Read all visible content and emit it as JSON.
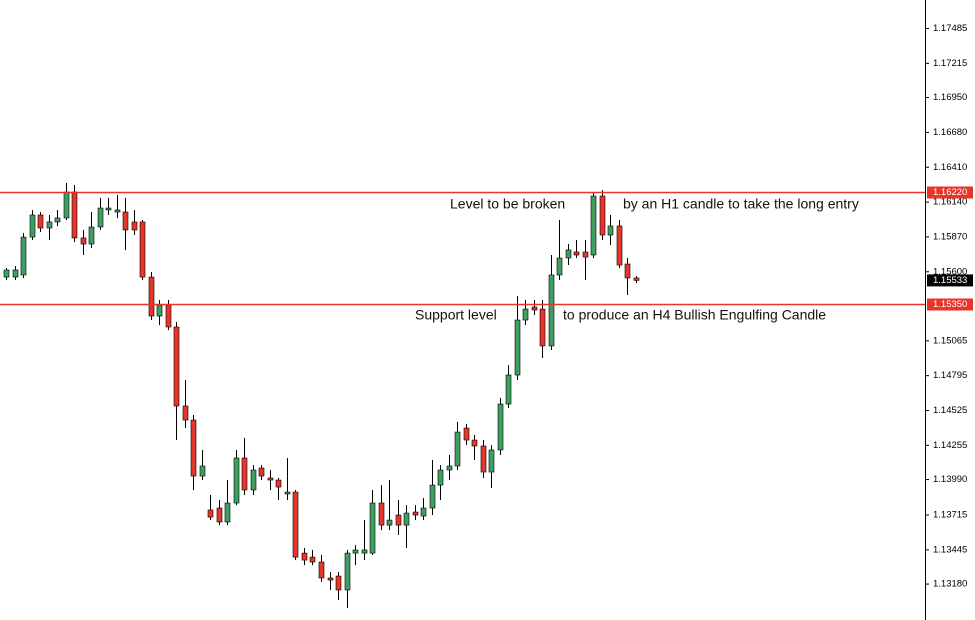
{
  "chart_data": {
    "type": "candlestick",
    "ylim": [
      1.12917,
      1.17706
    ],
    "yticks": [
      {
        "value": 1.17485,
        "label": "1.17485"
      },
      {
        "value": 1.17215,
        "label": "1.17215"
      },
      {
        "value": 1.1695,
        "label": "1.16950"
      },
      {
        "value": 1.1668,
        "label": "1.16680"
      },
      {
        "value": 1.1641,
        "label": "1.16410"
      },
      {
        "value": 1.1614,
        "label": "1.16140"
      },
      {
        "value": 1.1587,
        "label": "1.15870"
      },
      {
        "value": 1.156,
        "label": "1.15600"
      },
      {
        "value": 1.15065,
        "label": "1.15065"
      },
      {
        "value": 1.14795,
        "label": "1.14795"
      },
      {
        "value": 1.14525,
        "label": "1.14525"
      },
      {
        "value": 1.14255,
        "label": "1.14255"
      },
      {
        "value": 1.1399,
        "label": "1.13990"
      },
      {
        "value": 1.13715,
        "label": "1.13715"
      },
      {
        "value": 1.13445,
        "label": "1.13445"
      },
      {
        "value": 1.1318,
        "label": "1.13180"
      }
    ],
    "up_color": "#3f9f62",
    "down_color": "#e8352b",
    "wick_color": "#000000",
    "open": [
      1.15559,
      1.15559,
      1.15575,
      1.15869,
      1.1604,
      1.15939,
      1.15986,
      1.16017,
      1.16218,
      1.15862,
      1.15815,
      1.15947,
      1.16079,
      1.16063,
      1.16063,
      1.15986,
      1.15986,
      1.15559,
      1.15257,
      1.15342,
      1.15172,
      1.1456,
      1.14451,
      1.14017,
      1.13754,
      1.13769,
      1.13661,
      1.13808,
      1.14157,
      1.13909,
      1.14079,
      1.14002,
      1.13986,
      1.13878,
      1.13893,
      1.1342,
      1.13389,
      1.13351,
      1.13227,
      1.13242,
      1.13134,
      1.1342,
      1.1342,
      1.1342,
      1.13808,
      1.13637,
      1.13715,
      1.13637,
      1.13738,
      1.13707,
      1.13769,
      1.13947,
      1.14064,
      1.14095,
      1.14389,
      1.14296,
      1.1425,
      1.14048,
      1.14219,
      1.14575,
      1.148,
      1.15226,
      1.15327,
      1.15311,
      1.15025,
      1.15575,
      1.15707,
      1.15753,
      1.15753,
      1.1573,
      1.16187,
      1.15885,
      1.15955,
      1.1566,
      1.15552
    ],
    "high": [
      1.15629,
      1.15645,
      1.159,
      1.16079,
      1.16063,
      1.1604,
      1.16079,
      1.16288,
      1.16272,
      1.15924,
      1.16063,
      1.16172,
      1.16172,
      1.16195,
      1.16172,
      1.16079,
      1.16001,
      1.15598,
      1.15381,
      1.15381,
      1.15211,
      1.14761,
      1.1449,
      1.14219,
      1.1387,
      1.13831,
      1.13986,
      1.14219,
      1.14312,
      1.14102,
      1.14102,
      1.14064,
      1.14002,
      1.14157,
      1.13909,
      1.13459,
      1.13444,
      1.13405,
      1.13273,
      1.13273,
      1.13444,
      1.13482,
      1.13676,
      1.13909,
      1.13947,
      1.13986,
      1.13831,
      1.13792,
      1.13792,
      1.13847,
      1.14141,
      1.14102,
      1.1418,
      1.14436,
      1.1442,
      1.14335,
      1.14296,
      1.14257,
      1.14622,
      1.14877,
      1.15412,
      1.15381,
      1.15381,
      1.15381,
      1.1573,
      1.16001,
      1.15815,
      1.15846,
      1.15846,
      1.1621,
      1.16234,
      1.1604,
      1.16001,
      1.15707,
      1.15567
    ],
    "low": [
      1.15536,
      1.15536,
      1.15552,
      1.15846,
      1.15908,
      1.15846,
      1.15955,
      1.16001,
      1.15831,
      1.1573,
      1.15784,
      1.15924,
      1.1604,
      1.16017,
      1.15769,
      1.15885,
      1.15536,
      1.15226,
      1.15187,
      1.15149,
      1.14296,
      1.14389,
      1.13909,
      1.13986,
      1.13676,
      1.13637,
      1.13637,
      1.13792,
      1.1387,
      1.1387,
      1.13986,
      1.13909,
      1.13831,
      1.13831,
      1.13366,
      1.13327,
      1.13327,
      1.13196,
      1.13134,
      1.13056,
      1.12994,
      1.13327,
      1.13366,
      1.13405,
      1.13599,
      1.13599,
      1.1356,
      1.13459,
      1.13676,
      1.13676,
      1.13715,
      1.13831,
      1.13986,
      1.14064,
      1.14257,
      1.14141,
      1.14002,
      1.13924,
      1.1418,
      1.14544,
      1.14761,
      1.15187,
      1.15265,
      1.14932,
      1.14994,
      1.15536,
      1.15652,
      1.15707,
      1.15536,
      1.15707,
      1.15846,
      1.15807,
      1.15629,
      1.1542,
      1.15513
    ],
    "close": [
      1.15614,
      1.15614,
      1.15869,
      1.1604,
      1.15939,
      1.15986,
      1.16017,
      1.16218,
      1.15862,
      1.15815,
      1.15947,
      1.16094,
      1.16094,
      1.16079,
      1.15924,
      1.15924,
      1.15559,
      1.15257,
      1.15342,
      1.15172,
      1.1456,
      1.14451,
      1.14017,
      1.14095,
      1.13699,
      1.13661,
      1.13808,
      1.14157,
      1.13909,
      1.14064,
      1.14017,
      1.13986,
      1.13932,
      1.13893,
      1.13389,
      1.13366,
      1.13351,
      1.13227,
      1.13211,
      1.13134,
      1.1342,
      1.13444,
      1.13444,
      1.13808,
      1.13637,
      1.13676,
      1.13637,
      1.1373,
      1.13715,
      1.13769,
      1.13947,
      1.14064,
      1.14095,
      1.14358,
      1.14296,
      1.1425,
      1.14048,
      1.14219,
      1.14575,
      1.148,
      1.15226,
      1.15311,
      1.15304,
      1.15025,
      1.15575,
      1.15707,
      1.15769,
      1.1573,
      1.15714,
      1.16187,
      1.15885,
      1.15955,
      1.15652,
      1.15552,
      1.15533
    ],
    "levels": [
      {
        "value": 1.1622,
        "label": "1.16220"
      },
      {
        "value": 1.1535,
        "label": "1.15350"
      }
    ],
    "level_color": "#e8352b",
    "current_price": {
      "value": 1.15533,
      "label": "1.15533"
    },
    "annotations": [
      "Level to be broken",
      "by an H1 candle to take the long entry",
      "Support level",
      "to produce an H4 Bullish Engulfing Candle"
    ]
  }
}
